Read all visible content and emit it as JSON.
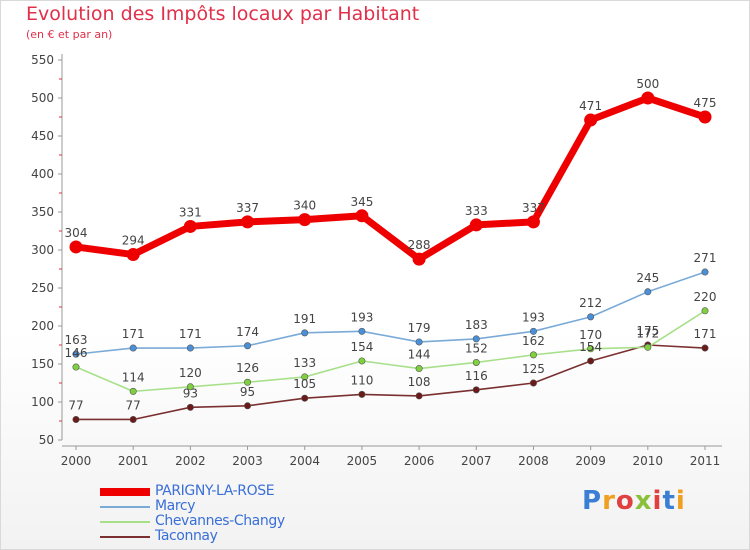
{
  "header": {
    "title": "Evolution des Impôts locaux par Habitant",
    "subtitle": "(en € et par an)"
  },
  "brand": {
    "logo_text": "Proxiti",
    "logo_letters": [
      "P",
      "r",
      "o",
      "x",
      "i",
      "t",
      "i"
    ],
    "logo_colors": [
      "#3a7fd5",
      "#f0a020",
      "#e04040",
      "#8ac03a",
      "#e04040",
      "#3a7fd5",
      "#f0a020"
    ]
  },
  "chart_data": {
    "type": "line",
    "title": "Evolution des Impôts locaux par Habitant",
    "subtitle": "(en € et par an)",
    "x": [
      "2000",
      "2001",
      "2002",
      "2003",
      "2004",
      "2005",
      "2006",
      "2007",
      "2008",
      "2009",
      "2010",
      "2011"
    ],
    "ylim": [
      50,
      550
    ],
    "yticks": [
      50,
      100,
      150,
      200,
      250,
      300,
      350,
      400,
      450,
      500,
      550
    ],
    "grid": false,
    "legend_position": "bottom-left",
    "series": [
      {
        "name": "PARIGNY-LA-ROSE",
        "values": [
          304,
          294,
          331,
          337,
          340,
          345,
          288,
          333,
          337,
          471,
          500,
          475
        ],
        "labels": [
          "304",
          "294",
          "331",
          "337",
          "340",
          "345",
          "288",
          "333",
          "337",
          "471",
          "500",
          "475"
        ],
        "color": "#ee0000",
        "marker_color": "#ee0000"
      },
      {
        "name": "Marcy",
        "values": [
          163,
          171,
          171,
          174,
          191,
          193,
          179,
          183,
          193,
          212,
          245,
          271
        ],
        "labels": [
          "163",
          "171",
          "171",
          "174",
          "191",
          "193",
          "179",
          "183",
          "193",
          "212",
          "245",
          "271"
        ],
        "color": "#7aaad8",
        "marker_color": "#4a90d9"
      },
      {
        "name": "Chevannes-Changy",
        "values": [
          146,
          114,
          120,
          126,
          133,
          154,
          144,
          152,
          162,
          170,
          172,
          220
        ],
        "labels": [
          "146",
          "114",
          "120",
          "126",
          "133",
          "154",
          "144",
          "152",
          "162",
          "170",
          "172",
          "220"
        ],
        "color": "#a8e08a",
        "marker_color": "#7fd040"
      },
      {
        "name": "Taconnay",
        "values": [
          77,
          77,
          93,
          95,
          105,
          110,
          108,
          116,
          125,
          154,
          175,
          171
        ],
        "labels": [
          "77",
          "77",
          "93",
          "95",
          "105",
          "110",
          "108",
          "116",
          "125",
          "154",
          "175",
          "171"
        ],
        "color": "#7a3030",
        "marker_color": "#6b1a1a"
      }
    ]
  }
}
